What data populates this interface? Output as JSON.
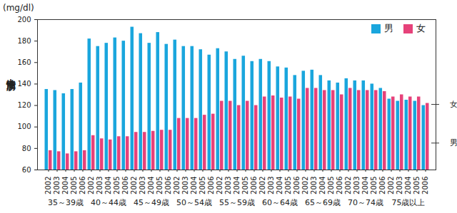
{
  "chart_data": {
    "type": "bar",
    "y_label": "中性脂肪",
    "y_unit": "(mg/dl)",
    "x_groups": [
      {
        "label": "35～39歳",
        "categories": [
          "2002",
          "2003",
          "2004",
          "2005",
          "2006"
        ]
      },
      {
        "label": "40～44歳",
        "categories": [
          "2002",
          "2003",
          "2004",
          "2005",
          "2006"
        ]
      },
      {
        "label": "45～49歳",
        "categories": [
          "2002",
          "2003",
          "2004",
          "2005",
          "2006"
        ]
      },
      {
        "label": "50～54歳",
        "categories": [
          "2002",
          "2003",
          "2004",
          "2005",
          "2006"
        ]
      },
      {
        "label": "55～59歳",
        "categories": [
          "2002",
          "2003",
          "2004",
          "2005",
          "2006"
        ]
      },
      {
        "label": "60～64歳",
        "categories": [
          "2002",
          "2003",
          "2004",
          "2005",
          "2006"
        ]
      },
      {
        "label": "65～69歳",
        "categories": [
          "2002",
          "2003",
          "2004",
          "2005",
          "2006"
        ]
      },
      {
        "label": "70～74歳",
        "categories": [
          "2002",
          "2003",
          "2004",
          "2005",
          "2006"
        ]
      },
      {
        "label": "75歳以上",
        "categories": [
          "2002",
          "2003",
          "2004",
          "2005",
          "2006"
        ]
      }
    ],
    "series": [
      {
        "name": "男",
        "color": "#1aa6dd",
        "values": [
          135,
          134,
          131,
          135,
          141,
          182,
          175,
          178,
          183,
          180,
          193,
          187,
          178,
          188,
          177,
          181,
          175,
          175,
          172,
          167,
          173,
          170,
          163,
          166,
          161,
          163,
          161,
          156,
          155,
          148,
          152,
          153,
          148,
          143,
          141,
          145,
          143,
          143,
          140,
          136,
          126,
          124,
          125,
          124,
          120
        ]
      },
      {
        "name": "女",
        "color": "#e6427a",
        "values": [
          78,
          77,
          75,
          77,
          78,
          92,
          89,
          88,
          91,
          91,
          95,
          95,
          96,
          97,
          97,
          108,
          108,
          108,
          111,
          112,
          124,
          124,
          120,
          124,
          120,
          128,
          129,
          127,
          128,
          126,
          136,
          136,
          134,
          134,
          130,
          136,
          134,
          134,
          134,
          133,
          128,
          130,
          128,
          128,
          122
        ]
      }
    ],
    "annotations": [
      {
        "text": "女",
        "y": 121
      },
      {
        "text": "男",
        "y": 85
      }
    ],
    "ylim": [
      60,
      200
    ],
    "yticks": [
      60,
      80,
      100,
      120,
      140,
      160,
      180,
      200
    ],
    "grid": false,
    "legend": "top-right"
  }
}
